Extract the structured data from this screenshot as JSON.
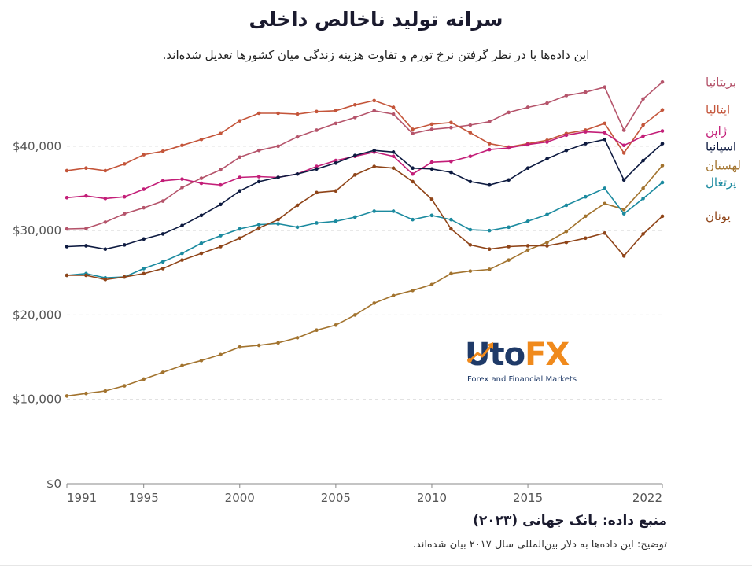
{
  "header": {
    "title": "سرانه تولید ناخالص داخلی",
    "subtitle": "این داده‌ها با در نظر گرفتن نرخ تورم و تفاوت هزینه زندگی میان کشورها تعدیل شده‌اند."
  },
  "footer": {
    "source": "منبع داده: بانک جهانی (۲۰۲۳)",
    "note": "توضیح: این داده‌ها به دلار بین‌المللی سال ۲۰۱۷ بیان شده‌اند."
  },
  "logo": {
    "text_navy": "Uto",
    "text_orange": "FX",
    "tagline": "Forex and Financial Markets"
  },
  "chart_data": {
    "type": "line",
    "title": "سرانه تولید ناخالص داخلی",
    "x": [
      1991,
      1992,
      1993,
      1994,
      1995,
      1996,
      1997,
      1998,
      1999,
      2000,
      2001,
      2002,
      2003,
      2004,
      2005,
      2006,
      2007,
      2008,
      2009,
      2010,
      2011,
      2012,
      2013,
      2014,
      2015,
      2016,
      2017,
      2018,
      2019,
      2020,
      2021,
      2022
    ],
    "xticks": [
      "1991",
      "1995",
      "2000",
      "2005",
      "2010",
      "2015",
      "2022"
    ],
    "xtick_values": [
      1991,
      1995,
      2000,
      2005,
      2010,
      2015,
      2022
    ],
    "yticks": [
      "$0",
      "$10,000",
      "$20,000",
      "$30,000",
      "$40,000"
    ],
    "ytick_values": [
      0,
      10000,
      20000,
      30000,
      40000
    ],
    "ylim": [
      0,
      48000
    ],
    "xlim": [
      1991,
      2022
    ],
    "grid": true,
    "series": [
      {
        "name": "بریتانیا",
        "color": "#b5546b",
        "values": [
          30200,
          30250,
          31000,
          32000,
          32700,
          33500,
          35100,
          36200,
          37200,
          38700,
          39500,
          40000,
          41100,
          41900,
          42700,
          43400,
          44200,
          43800,
          41500,
          42000,
          42200,
          42500,
          42900,
          44000,
          44600,
          45100,
          46000,
          46400,
          47000,
          41900,
          45600,
          47600
        ]
      },
      {
        "name": "ایتالیا",
        "color": "#c4553a",
        "values": [
          37100,
          37400,
          37100,
          37900,
          39000,
          39400,
          40100,
          40800,
          41500,
          43000,
          43900,
          43900,
          43800,
          44100,
          44200,
          44900,
          45400,
          44600,
          42000,
          42600,
          42800,
          41600,
          40300,
          39900,
          40300,
          40700,
          41500,
          41900,
          42700,
          39200,
          42500,
          44300
        ]
      },
      {
        "name": "ژاپن",
        "color": "#c31e78",
        "values": [
          33900,
          34100,
          33800,
          34000,
          34900,
          35900,
          36100,
          35600,
          35400,
          36300,
          36400,
          36300,
          36700,
          37600,
          38300,
          38800,
          39300,
          38800,
          36700,
          38100,
          38200,
          38800,
          39600,
          39800,
          40200,
          40500,
          41300,
          41700,
          41600,
          40100,
          41200,
          41800
        ]
      },
      {
        "name": "اسپانیا",
        "color": "#0d1a40",
        "values": [
          28100,
          28200,
          27800,
          28300,
          29000,
          29600,
          30600,
          31800,
          33100,
          34700,
          35800,
          36300,
          36700,
          37300,
          38000,
          38900,
          39500,
          39300,
          37400,
          37300,
          36900,
          35800,
          35400,
          36000,
          37400,
          38500,
          39500,
          40300,
          40800,
          36000,
          38300,
          40300
        ]
      },
      {
        "name": "لهستان",
        "color": "#a2732e",
        "values": [
          10400,
          10700,
          11000,
          11600,
          12400,
          13200,
          14000,
          14600,
          15300,
          16200,
          16400,
          16700,
          17300,
          18200,
          18800,
          20000,
          21400,
          22300,
          22900,
          23600,
          24900,
          25200,
          25400,
          26500,
          27700,
          28600,
          29900,
          31700,
          33200,
          32500,
          35000,
          37700
        ]
      },
      {
        "name": "پرتغال",
        "color": "#1b8a9f",
        "values": [
          24700,
          24900,
          24400,
          24500,
          25500,
          26300,
          27300,
          28500,
          29400,
          30200,
          30700,
          30800,
          30400,
          30900,
          31100,
          31600,
          32300,
          32300,
          31300,
          31800,
          31300,
          30100,
          30000,
          30400,
          31100,
          31900,
          33000,
          34000,
          35000,
          32000,
          33800,
          35700
        ]
      },
      {
        "name": "یونان",
        "color": "#8f4418",
        "values": [
          24700,
          24700,
          24200,
          24500,
          24900,
          25500,
          26500,
          27300,
          28100,
          29100,
          30300,
          31300,
          33000,
          34500,
          34700,
          36600,
          37600,
          37400,
          35800,
          33700,
          30200,
          28300,
          27800,
          28100,
          28200,
          28200,
          28600,
          29100,
          29700,
          27000,
          29600,
          31700
        ]
      }
    ]
  }
}
